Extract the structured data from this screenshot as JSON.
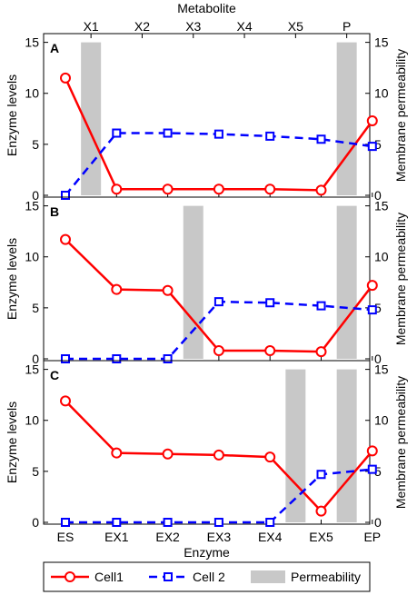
{
  "chart_data": {
    "type": "line",
    "top_axis": {
      "title": "Metabolite",
      "ticks": [
        "X1",
        "X2",
        "X3",
        "X4",
        "X5",
        "P"
      ]
    },
    "xlabel": "Enzyme",
    "categories": [
      "ES",
      "EX1",
      "EX2",
      "EX3",
      "EX4",
      "EX5",
      "EP"
    ],
    "ylabel_left": "Enzyme levels",
    "ylabel_right": "Membrane permeability",
    "ylim": [
      0,
      15.5
    ],
    "yticks": [
      0,
      5,
      10,
      15
    ],
    "legend": {
      "placement": "bottom",
      "entries": [
        "Cell1",
        "Cell 2",
        "Permeability"
      ]
    },
    "colors": {
      "cell1": "#ff0000",
      "cell2": "#0000ff",
      "permeability": "#c8c8c8"
    },
    "panels": [
      {
        "label": "A",
        "series": [
          {
            "name": "Cell1",
            "values": [
              11.5,
              0.6,
              0.6,
              0.6,
              0.6,
              0.5,
              7.3
            ]
          },
          {
            "name": "Cell 2",
            "values": [
              0.0,
              6.1,
              6.1,
              6.0,
              5.8,
              5.5,
              4.8
            ]
          }
        ],
        "permeability": [
          {
            "metabolite": "X1",
            "value": 15
          },
          {
            "metabolite": "P",
            "value": 15
          }
        ]
      },
      {
        "label": "B",
        "series": [
          {
            "name": "Cell1",
            "values": [
              11.7,
              6.8,
              6.7,
              0.8,
              0.8,
              0.7,
              7.2
            ]
          },
          {
            "name": "Cell 2",
            "values": [
              0.0,
              0.0,
              0.0,
              5.6,
              5.5,
              5.2,
              4.8
            ]
          }
        ],
        "permeability": [
          {
            "metabolite": "X3",
            "value": 15
          },
          {
            "metabolite": "P",
            "value": 15
          }
        ]
      },
      {
        "label": "C",
        "series": [
          {
            "name": "Cell1",
            "values": [
              11.9,
              6.8,
              6.7,
              6.6,
              6.4,
              1.1,
              7.0
            ]
          },
          {
            "name": "Cell 2",
            "values": [
              0.0,
              0.0,
              0.0,
              0.0,
              0.0,
              4.7,
              5.2
            ]
          }
        ],
        "permeability": [
          {
            "metabolite": "X5",
            "value": 15
          },
          {
            "metabolite": "P",
            "value": 15
          }
        ]
      }
    ]
  }
}
